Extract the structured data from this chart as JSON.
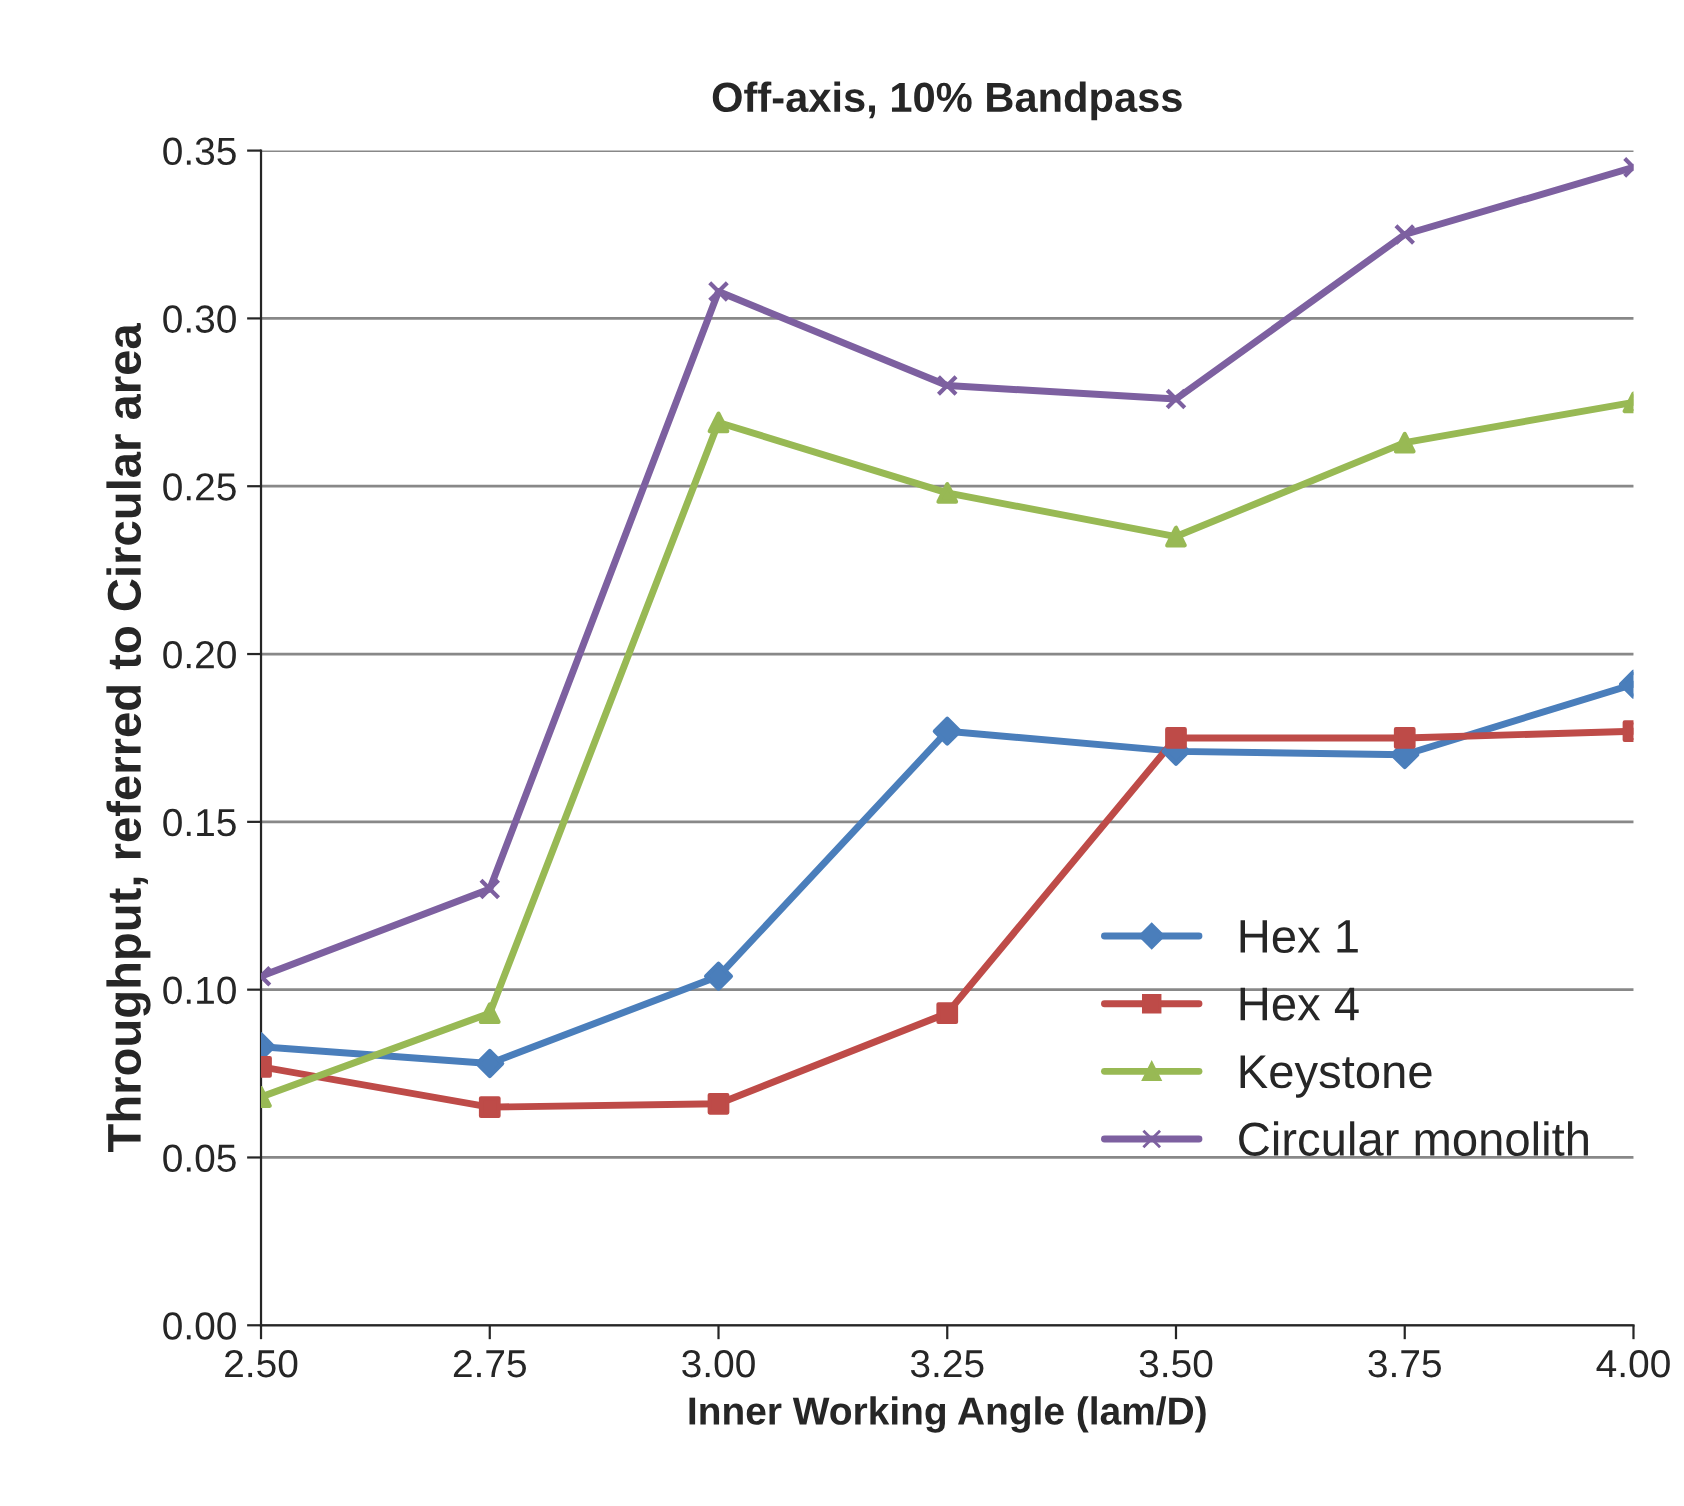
{
  "chart_data": {
    "type": "line",
    "title": "Off-axis, 10% Bandpass",
    "xlabel": "Inner Working Angle (lam/D)",
    "ylabel": "Throughput, referred to Circular area",
    "x": [
      2.5,
      2.75,
      3.0,
      3.25,
      3.5,
      3.75,
      4.0
    ],
    "series": [
      {
        "name": "Hex 1",
        "color": "#4a7ebb",
        "marker": "diamond",
        "values": [
          0.083,
          0.078,
          0.104,
          0.177,
          0.171,
          0.17,
          0.191
        ]
      },
      {
        "name": "Hex 4",
        "color": "#be4b48",
        "marker": "square",
        "values": [
          0.077,
          0.065,
          0.066,
          0.093,
          0.175,
          0.175,
          0.177
        ]
      },
      {
        "name": "Keystone",
        "color": "#98b954",
        "marker": "triangle",
        "values": [
          0.068,
          0.093,
          0.269,
          0.248,
          0.235,
          0.263,
          0.275
        ]
      },
      {
        "name": "Circular monolith",
        "color": "#7d60a0",
        "marker": "cross",
        "values": [
          0.104,
          0.13,
          0.308,
          0.28,
          0.276,
          0.325,
          0.345
        ]
      }
    ],
    "xlim": [
      2.5,
      4.0
    ],
    "xticks": [
      {
        "value": 2.5,
        "label": "2.50"
      },
      {
        "value": 2.75,
        "label": "2.75"
      },
      {
        "value": 3.0,
        "label": "3.00"
      },
      {
        "value": 3.25,
        "label": "3.25"
      },
      {
        "value": 3.5,
        "label": "3.50"
      },
      {
        "value": 3.75,
        "label": "3.75"
      },
      {
        "value": 4.0,
        "label": "4.00"
      }
    ],
    "ylim": [
      0,
      0.35
    ],
    "yticks": [
      {
        "value": 0,
        "label": "0.00"
      },
      {
        "value": 0.05,
        "label": "0.05"
      },
      {
        "value": 0.1,
        "label": "0.10"
      },
      {
        "value": 0.15,
        "label": "0.15"
      },
      {
        "value": 0.2,
        "label": "0.20"
      },
      {
        "value": 0.25,
        "label": "0.25"
      },
      {
        "value": 0.3,
        "label": "0.30"
      },
      {
        "value": 0.35,
        "label": "0.35"
      }
    ],
    "grid": "y",
    "legend": "lower right",
    "line_style": "solid"
  }
}
